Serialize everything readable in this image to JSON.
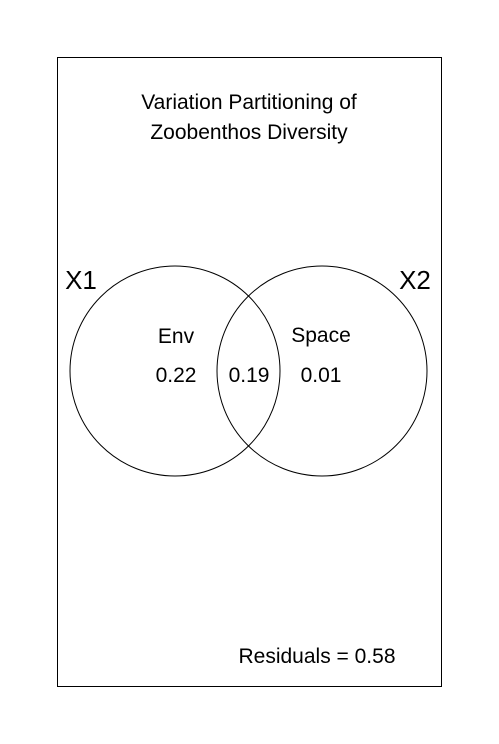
{
  "title_line1": "Variation Partitioning of",
  "title_line2": "Zoobenthos Diversity",
  "sets": {
    "x1": {
      "name": "X1",
      "factor": "Env",
      "unique_fraction": "0.22"
    },
    "x2": {
      "name": "X2",
      "factor": "Space",
      "unique_fraction": "0.01"
    }
  },
  "shared_fraction": "0.19",
  "residuals_label": "Residuals = 0.58",
  "colors": {
    "stroke": "#000000",
    "background": "#ffffff"
  }
}
